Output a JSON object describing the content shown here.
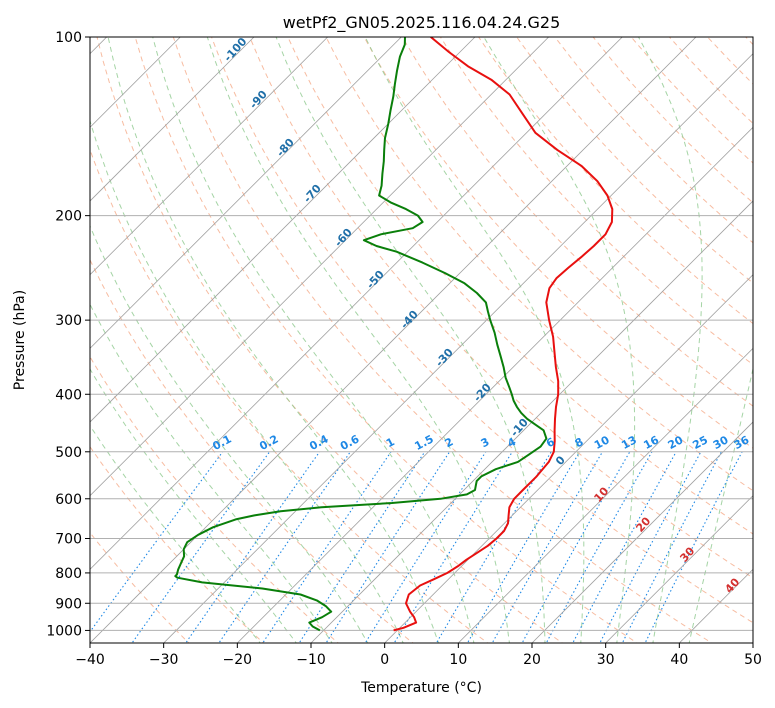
{
  "chart_data": {
    "type": "line",
    "title": "wetPf2_GN05.2025.116.04.24.G25",
    "xlabel": "Temperature (°C)",
    "ylabel": "Pressure (hPa)",
    "xlim": [
      -40,
      50
    ],
    "ylim": [
      1050,
      100
    ],
    "y_scale": "log",
    "grid": true,
    "x_ticks": [
      -40,
      -30,
      -20,
      -10,
      0,
      10,
      20,
      30,
      40,
      50
    ],
    "y_ticks": [
      100,
      200,
      300,
      400,
      500,
      600,
      700,
      800,
      900,
      1000
    ],
    "colors": {
      "temperature": "#e8100f",
      "dewpoint": "#0a7f0a",
      "isotherm": "#a0a0a0",
      "dry_adiabat": "#f4a582",
      "moist_adiabat": "#8fc98f",
      "mixing_ratio": "#1e88e5"
    },
    "series": [
      {
        "key": "temperature",
        "p": [
          1000,
          990,
          970,
          950,
          930,
          900,
          870,
          840,
          820,
          800,
          780,
          760,
          740,
          720,
          700,
          680,
          660,
          640,
          620,
          600,
          580,
          550,
          520,
          500,
          480,
          460,
          440,
          420,
          400,
          380,
          360,
          340,
          320,
          300,
          280,
          265,
          255,
          245,
          235,
          225,
          215,
          205,
          195,
          185,
          175,
          165,
          155,
          145,
          135,
          125,
          118,
          112,
          106,
          100
        ],
        "t": [
          -0.5,
          0.5,
          1.5,
          0.5,
          -0.8,
          -2.5,
          -3.3,
          -3.0,
          -2.0,
          -1.0,
          -0.5,
          -0.2,
          0.3,
          0.8,
          1.0,
          1.0,
          0.5,
          -0.5,
          -1.5,
          -2.0,
          -2.0,
          -2.0,
          -2.3,
          -3.0,
          -4.3,
          -5.8,
          -7.3,
          -8.8,
          -10.2,
          -12.0,
          -14.2,
          -16.4,
          -18.7,
          -21.5,
          -24.3,
          -25.8,
          -26.2,
          -26.0,
          -25.7,
          -25.5,
          -25.5,
          -26.3,
          -28.0,
          -30.5,
          -33.8,
          -38.0,
          -43.5,
          -48.8,
          -53.0,
          -57.5,
          -62.0,
          -67.0,
          -71.5,
          -76.0
        ]
      },
      {
        "key": "dewpoint",
        "p": [
          1000,
          985,
          970,
          950,
          930,
          910,
          890,
          870,
          850,
          830,
          815,
          810,
          805,
          790,
          770,
          750,
          730,
          710,
          690,
          670,
          650,
          640,
          630,
          620,
          610,
          600,
          590,
          580,
          570,
          560,
          550,
          535,
          520,
          505,
          490,
          475,
          460,
          450,
          440,
          430,
          420,
          410,
          400,
          390,
          375,
          360,
          345,
          330,
          315,
          300,
          290,
          280,
          270,
          260,
          250,
          240,
          230,
          225,
          220,
          215,
          210,
          205,
          200,
          195,
          190,
          185,
          178,
          170,
          162,
          155,
          148,
          140,
          133,
          126,
          120,
          114,
          108,
          103,
          100
        ],
        "t": [
          -10.5,
          -12.0,
          -13.0,
          -12.0,
          -11.5,
          -13.0,
          -15.0,
          -18.0,
          -24.0,
          -33.0,
          -37.0,
          -37.5,
          -37.5,
          -38.0,
          -38.5,
          -39.0,
          -40.0,
          -40.5,
          -40.0,
          -39.0,
          -37.0,
          -35.0,
          -32.0,
          -27.0,
          -18.0,
          -12.0,
          -9.0,
          -8.5,
          -9.0,
          -9.5,
          -9.5,
          -8.5,
          -6.5,
          -6.0,
          -5.5,
          -5.8,
          -7.3,
          -9.2,
          -11.1,
          -12.7,
          -14.1,
          -15.4,
          -16.5,
          -17.7,
          -19.6,
          -21.3,
          -23.2,
          -25.2,
          -27.2,
          -29.5,
          -31.0,
          -32.5,
          -35.0,
          -38.0,
          -42.0,
          -46.5,
          -51.5,
          -55.0,
          -57.5,
          -56.0,
          -52.5,
          -52.0,
          -53.5,
          -56.0,
          -59.0,
          -61.5,
          -62.5,
          -64.0,
          -65.5,
          -67.0,
          -68.5,
          -70.0,
          -71.5,
          -73.0,
          -74.5,
          -76.0,
          -77.5,
          -78.5,
          -79.5
        ]
      }
    ],
    "moist_adiabat_labels": [
      "-100",
      "-90",
      "-80",
      "-70",
      "-60",
      "-50",
      "-40",
      "-30",
      "-20",
      "-10",
      "0"
    ],
    "dry_adiabat_labels": [
      "10",
      "20",
      "30",
      "40"
    ],
    "mixing_ratio_labels": [
      "0.1",
      "0.2",
      "0.4",
      "0.6",
      "1",
      "1.5",
      "2",
      "3",
      "4",
      "6",
      "8",
      "10",
      "13",
      "16",
      "20",
      "25",
      "30",
      "36"
    ]
  }
}
